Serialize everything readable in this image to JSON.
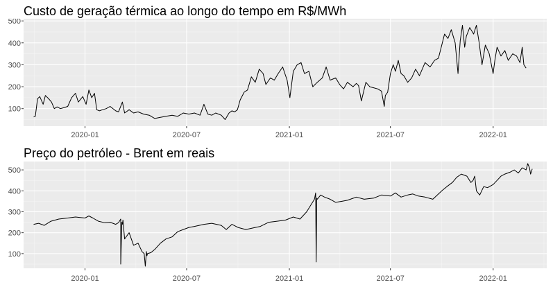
{
  "colors": {
    "panel_background": "#EBEBEB",
    "grid_major": "#FFFFFF",
    "grid_minor": "#F5F5F5",
    "line": "#000000",
    "tick_text": "#4D4D4D"
  },
  "chart_data": [
    {
      "type": "line",
      "title": "Custo de geração térmica ao longo do tempo em R$/MWh",
      "xlabel": "",
      "ylabel": "",
      "x_tick_labels": [
        "2020-01",
        "2020-07",
        "2021-01",
        "2021-07",
        "2022-01"
      ],
      "x_tick_dates": [
        "2020-01-01",
        "2020-07-01",
        "2021-01-01",
        "2021-07-01",
        "2022-01-01"
      ],
      "xlim": [
        "2019-09-13",
        "2022-04-07"
      ],
      "y_ticks": [
        100,
        200,
        300,
        400,
        500
      ],
      "ylim": [
        20,
        510
      ],
      "grid": true,
      "series": [
        {
          "x": [
            "2019-10-01",
            "2019-10-04",
            "2019-10-08",
            "2019-10-12",
            "2019-10-18",
            "2019-10-22",
            "2019-10-28",
            "2019-11-02",
            "2019-11-07",
            "2019-11-12",
            "2019-11-18",
            "2019-11-25",
            "2019-12-01",
            "2019-12-08",
            "2019-12-15",
            "2019-12-20",
            "2019-12-28",
            "2020-01-03",
            "2020-01-08",
            "2020-01-13",
            "2020-01-18",
            "2020-01-22",
            "2020-01-27",
            "2020-02-01",
            "2020-02-08",
            "2020-02-15",
            "2020-02-25",
            "2020-03-01",
            "2020-03-08",
            "2020-03-12",
            "2020-03-20",
            "2020-03-28",
            "2020-04-05",
            "2020-04-15",
            "2020-04-25",
            "2020-05-05",
            "2020-05-15",
            "2020-05-25",
            "2020-06-05",
            "2020-06-15",
            "2020-06-25",
            "2020-07-05",
            "2020-07-15",
            "2020-07-25",
            "2020-08-01",
            "2020-08-08",
            "2020-08-15",
            "2020-08-22",
            "2020-09-01",
            "2020-09-08",
            "2020-09-15",
            "2020-09-20",
            "2020-09-25",
            "2020-09-30",
            "2020-10-05",
            "2020-10-12",
            "2020-10-18",
            "2020-10-25",
            "2020-11-01",
            "2020-11-08",
            "2020-11-15",
            "2020-11-20",
            "2020-11-28",
            "2020-12-05",
            "2020-12-12",
            "2020-12-20",
            "2020-12-28",
            "2021-01-02",
            "2021-01-08",
            "2021-01-15",
            "2021-01-22",
            "2021-01-28",
            "2021-02-05",
            "2021-02-12",
            "2021-02-20",
            "2021-03-01",
            "2021-03-08",
            "2021-03-15",
            "2021-03-25",
            "2021-04-01",
            "2021-04-08",
            "2021-04-15",
            "2021-04-25",
            "2021-05-01",
            "2021-05-05",
            "2021-05-10",
            "2021-05-18",
            "2021-05-25",
            "2021-06-01",
            "2021-06-08",
            "2021-06-15",
            "2021-06-20",
            "2021-06-22",
            "2021-06-26",
            "2021-07-01",
            "2021-07-06",
            "2021-07-10",
            "2021-07-15",
            "2021-07-20",
            "2021-07-25",
            "2021-08-01",
            "2021-08-08",
            "2021-08-15",
            "2021-08-22",
            "2021-09-01",
            "2021-09-10",
            "2021-09-18",
            "2021-09-25",
            "2021-10-01",
            "2021-10-06",
            "2021-10-12",
            "2021-10-18",
            "2021-10-25",
            "2021-10-30",
            "2021-11-03",
            "2021-11-07",
            "2021-11-11",
            "2021-11-14",
            "2021-11-20",
            "2021-11-27",
            "2021-12-02",
            "2021-12-07",
            "2021-12-12",
            "2021-12-18",
            "2021-12-25",
            "2022-01-01",
            "2022-01-04",
            "2022-01-08",
            "2022-01-15",
            "2022-01-22",
            "2022-01-28",
            "2022-02-05",
            "2022-02-12",
            "2022-02-18",
            "2022-02-22",
            "2022-02-25",
            "2022-03-01"
          ],
          "y": [
            62,
            65,
            145,
            155,
            120,
            160,
            145,
            130,
            100,
            108,
            100,
            105,
            110,
            150,
            170,
            130,
            155,
            120,
            185,
            150,
            170,
            95,
            90,
            95,
            100,
            110,
            90,
            85,
            130,
            80,
            95,
            80,
            85,
            75,
            70,
            55,
            60,
            65,
            70,
            65,
            80,
            75,
            80,
            70,
            120,
            75,
            70,
            80,
            70,
            50,
            80,
            90,
            85,
            95,
            140,
            175,
            185,
            245,
            220,
            280,
            260,
            210,
            240,
            230,
            260,
            290,
            230,
            150,
            270,
            300,
            310,
            260,
            270,
            200,
            220,
            240,
            290,
            230,
            240,
            210,
            190,
            220,
            200,
            215,
            205,
            135,
            220,
            200,
            195,
            190,
            180,
            110,
            160,
            175,
            260,
            300,
            270,
            320,
            260,
            250,
            220,
            240,
            280,
            250,
            310,
            290,
            320,
            330,
            390,
            440,
            420,
            460,
            400,
            260,
            410,
            480,
            380,
            430,
            470,
            440,
            480,
            400,
            300,
            390,
            350,
            260,
            320,
            380,
            340,
            365,
            320,
            350,
            340,
            310,
            380,
            300,
            285
          ]
        }
      ]
    },
    {
      "type": "line",
      "title": "Preço do petróleo - Brent em reais",
      "xlabel": "",
      "ylabel": "",
      "x_tick_labels": [
        "2020-01",
        "2020-07",
        "2021-01",
        "2021-07",
        "2022-01"
      ],
      "x_tick_dates": [
        "2020-01-01",
        "2020-07-01",
        "2021-01-01",
        "2021-07-01",
        "2022-01-01"
      ],
      "xlim": [
        "2019-09-13",
        "2022-04-07"
      ],
      "y_ticks": [
        100,
        200,
        300,
        400,
        500
      ],
      "ylim": [
        30,
        540
      ],
      "grid": true,
      "series": [
        {
          "x": [
            "2019-10-01",
            "2019-10-10",
            "2019-10-20",
            "2019-11-01",
            "2019-11-15",
            "2019-12-01",
            "2019-12-15",
            "2020-01-01",
            "2020-01-08",
            "2020-01-15",
            "2020-01-25",
            "2020-02-05",
            "2020-02-15",
            "2020-02-25",
            "2020-03-01",
            "2020-03-05",
            "2020-03-05",
            "2020-03-07",
            "2020-03-08",
            "2020-03-09",
            "2020-03-12",
            "2020-03-20",
            "2020-03-28",
            "2020-04-05",
            "2020-04-12",
            "2020-04-16",
            "2020-04-18",
            "2020-04-20",
            "2020-04-21",
            "2020-04-22",
            "2020-04-28",
            "2020-05-05",
            "2020-05-15",
            "2020-05-25",
            "2020-06-05",
            "2020-06-15",
            "2020-06-25",
            "2020-07-05",
            "2020-07-15",
            "2020-08-01",
            "2020-08-15",
            "2020-09-01",
            "2020-09-10",
            "2020-09-20",
            "2020-10-01",
            "2020-10-15",
            "2020-11-01",
            "2020-11-10",
            "2020-11-25",
            "2020-12-10",
            "2020-12-25",
            "2021-01-08",
            "2021-01-20",
            "2021-02-01",
            "2021-02-08",
            "2021-02-15",
            "2021-02-17",
            "2021-02-18",
            "2021-02-19",
            "2021-02-20",
            "2021-02-26",
            "2021-03-05",
            "2021-03-15",
            "2021-03-25",
            "2021-04-05",
            "2021-04-15",
            "2021-05-01",
            "2021-05-15",
            "2021-06-01",
            "2021-06-15",
            "2021-07-01",
            "2021-07-10",
            "2021-07-20",
            "2021-08-01",
            "2021-08-10",
            "2021-08-20",
            "2021-09-01",
            "2021-09-15",
            "2021-10-01",
            "2021-10-10",
            "2021-10-20",
            "2021-10-28",
            "2021-11-05",
            "2021-11-15",
            "2021-11-22",
            "2021-11-26",
            "2021-11-29",
            "2021-12-02",
            "2021-12-08",
            "2021-12-15",
            "2021-12-22",
            "2022-01-01",
            "2022-01-08",
            "2022-01-15",
            "2022-01-22",
            "2022-02-01",
            "2022-02-08",
            "2022-02-15",
            "2022-02-22",
            "2022-03-01",
            "2022-03-04",
            "2022-03-07",
            "2022-03-09",
            "2022-03-12"
          ],
          "y": [
            240,
            245,
            235,
            255,
            265,
            270,
            275,
            270,
            280,
            270,
            255,
            248,
            250,
            240,
            248,
            265,
            50,
            250,
            240,
            260,
            170,
            200,
            140,
            150,
            110,
            100,
            40,
            110,
            90,
            100,
            105,
            120,
            150,
            170,
            180,
            205,
            215,
            225,
            230,
            240,
            245,
            235,
            215,
            240,
            225,
            215,
            225,
            230,
            250,
            255,
            260,
            275,
            265,
            300,
            330,
            360,
            390,
            60,
            365,
            360,
            380,
            370,
            360,
            345,
            350,
            355,
            370,
            360,
            365,
            380,
            375,
            390,
            370,
            380,
            385,
            375,
            370,
            360,
            400,
            420,
            440,
            465,
            480,
            470,
            440,
            450,
            470,
            400,
            380,
            420,
            415,
            430,
            450,
            470,
            480,
            490,
            500,
            485,
            510,
            500,
            530,
            510,
            480,
            505
          ]
        }
      ]
    }
  ]
}
